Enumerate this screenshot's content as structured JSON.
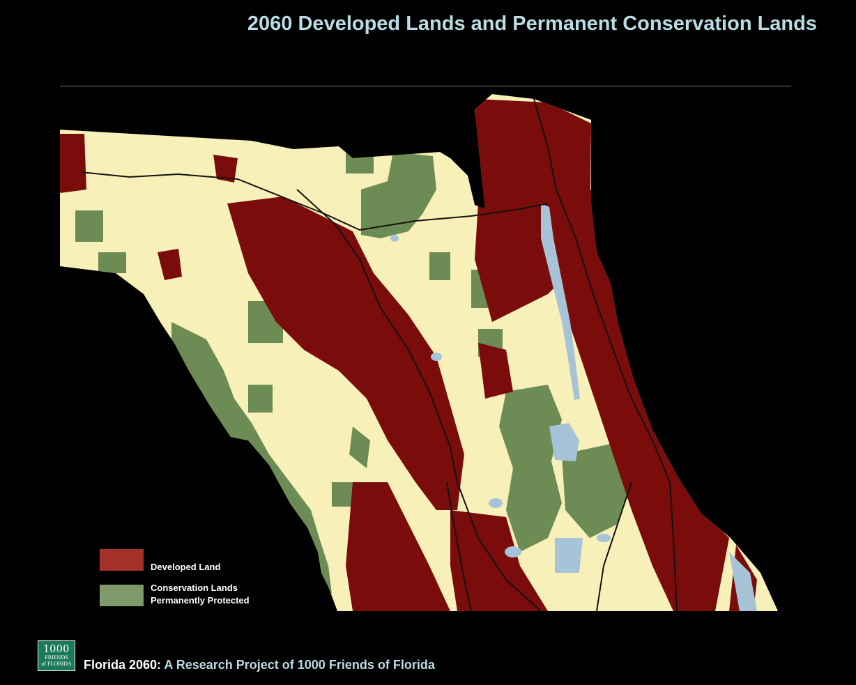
{
  "header": {
    "title": "2060 Developed Lands and Permanent Conservation Lands"
  },
  "legend": {
    "developed": {
      "label": "Developed Land",
      "color": "#a33228"
    },
    "conservation": {
      "line1": "Conservation Lands",
      "line2": "Permanently Protected",
      "color": "#7e9a6a"
    }
  },
  "map": {
    "land_color": "#f7f0b8",
    "developed_color": "#7b0c0c",
    "conservation_color": "#6d8c55",
    "water_color": "#a7c3d8",
    "road_color": "#111111"
  },
  "logo": {
    "line1": "1000",
    "line2": "FRIENDS",
    "line3": "of FLORIDA"
  },
  "footer": {
    "prefix": "Florida 2060:",
    "text": " A Research Project of 1000 Friends of Florida"
  }
}
